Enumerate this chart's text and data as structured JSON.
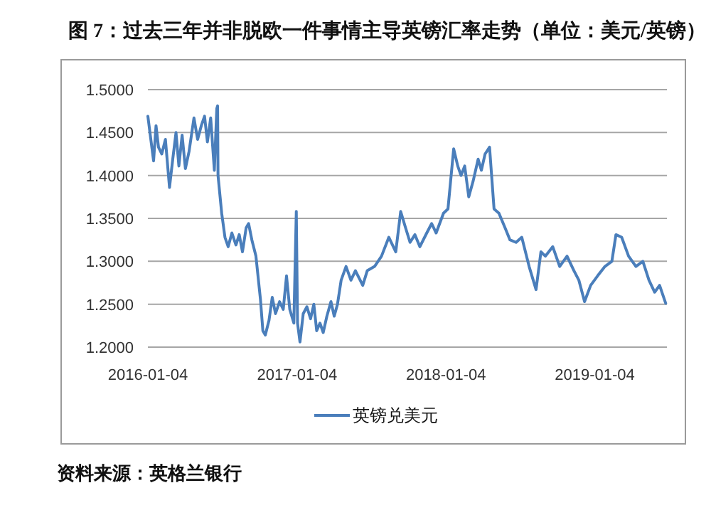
{
  "chart_data": {
    "type": "line",
    "title": "图 7：过去三年并非脱欧一件事情主导英镑汇率走势（单位：美元/英镑）",
    "annotations": [
      "资料来源：英格兰银行"
    ],
    "x": [
      "2016-01-04",
      "2016-01-12",
      "2016-01-18",
      "2016-01-24",
      "2016-01-30",
      "2016-02-07",
      "2016-02-16",
      "2016-02-26",
      "2016-03-05",
      "2016-03-13",
      "2016-03-20",
      "2016-03-28",
      "2016-04-05",
      "2016-04-14",
      "2016-04-26",
      "2016-05-05",
      "2016-05-14",
      "2016-05-22",
      "2016-05-29",
      "2016-06-06",
      "2016-06-15",
      "2016-06-21",
      "2016-06-23",
      "2016-06-24",
      "2016-07-03",
      "2016-07-11",
      "2016-07-19",
      "2016-07-28",
      "2016-08-07",
      "2016-08-15",
      "2016-08-23",
      "2016-09-01",
      "2016-09-07",
      "2016-09-15",
      "2016-09-25",
      "2016-10-06",
      "2016-10-12",
      "2016-10-18",
      "2016-10-27",
      "2016-11-04",
      "2016-11-12",
      "2016-11-22",
      "2016-12-01",
      "2016-12-09",
      "2016-12-17",
      "2016-12-27",
      "2017-01-02",
      "2017-01-05",
      "2017-01-11",
      "2017-01-19",
      "2017-01-28",
      "2017-02-06",
      "2017-02-14",
      "2017-02-21",
      "2017-03-01",
      "2017-03-09",
      "2017-03-18",
      "2017-03-28",
      "2017-04-05",
      "2017-04-13",
      "2017-04-22",
      "2017-05-04",
      "2017-05-16",
      "2017-05-27",
      "2017-06-14",
      "2017-06-25",
      "2017-07-13",
      "2017-07-30",
      "2017-08-17",
      "2017-09-03",
      "2017-09-15",
      "2017-09-27",
      "2017-10-08",
      "2017-10-20",
      "2017-11-01",
      "2017-11-18",
      "2017-11-30",
      "2017-12-11",
      "2017-12-29",
      "2018-01-09",
      "2018-01-23",
      "2018-02-02",
      "2018-02-10",
      "2018-02-19",
      "2018-03-01",
      "2018-03-12",
      "2018-03-24",
      "2018-04-01",
      "2018-04-10",
      "2018-04-21",
      "2018-05-02",
      "2018-05-14",
      "2018-05-29",
      "2018-06-10",
      "2018-06-25",
      "2018-07-09",
      "2018-07-27",
      "2018-08-13",
      "2018-08-25",
      "2018-09-05",
      "2018-09-23",
      "2018-10-10",
      "2018-10-28",
      "2018-11-14",
      "2018-11-26",
      "2018-12-10",
      "2018-12-25",
      "2019-01-11",
      "2019-01-29",
      "2019-02-15",
      "2019-02-25",
      "2019-03-11",
      "2019-03-28",
      "2019-04-15",
      "2019-05-02",
      "2019-05-17",
      "2019-05-31",
      "2019-06-12",
      "2019-06-27"
    ],
    "series": [
      {
        "name": "英镑兑美元",
        "color": "#4a7ebb",
        "values": [
          1.469,
          1.439,
          1.417,
          1.458,
          1.433,
          1.425,
          1.442,
          1.386,
          1.419,
          1.45,
          1.411,
          1.447,
          1.408,
          1.428,
          1.467,
          1.442,
          1.458,
          1.469,
          1.439,
          1.467,
          1.406,
          1.478,
          1.481,
          1.4,
          1.356,
          1.328,
          1.317,
          1.333,
          1.319,
          1.331,
          1.311,
          1.339,
          1.344,
          1.325,
          1.306,
          1.256,
          1.219,
          1.214,
          1.231,
          1.258,
          1.239,
          1.253,
          1.244,
          1.283,
          1.244,
          1.228,
          1.358,
          1.228,
          1.206,
          1.239,
          1.247,
          1.233,
          1.25,
          1.219,
          1.228,
          1.217,
          1.236,
          1.253,
          1.236,
          1.25,
          1.278,
          1.294,
          1.278,
          1.289,
          1.272,
          1.289,
          1.294,
          1.306,
          1.328,
          1.311,
          1.358,
          1.339,
          1.322,
          1.331,
          1.317,
          1.333,
          1.344,
          1.333,
          1.356,
          1.361,
          1.431,
          1.411,
          1.4,
          1.411,
          1.375,
          1.394,
          1.419,
          1.406,
          1.425,
          1.433,
          1.361,
          1.356,
          1.339,
          1.325,
          1.322,
          1.328,
          1.294,
          1.267,
          1.311,
          1.306,
          1.317,
          1.294,
          1.306,
          1.289,
          1.278,
          1.253,
          1.272,
          1.283,
          1.294,
          1.3,
          1.331,
          1.328,
          1.306,
          1.294,
          1.3,
          1.278,
          1.264,
          1.272,
          1.251
        ]
      }
    ],
    "xlim": [
      "2016-01-04",
      "2019-06-30"
    ],
    "xticks": [
      "2016-01-04",
      "2017-01-04",
      "2018-01-04",
      "2019-01-04"
    ],
    "ylim": [
      1.2,
      1.5
    ],
    "yticks": [
      {
        "value": 1.2,
        "label": "1.2000"
      },
      {
        "value": 1.25,
        "label": "1.2500"
      },
      {
        "value": 1.3,
        "label": "1.3000"
      },
      {
        "value": 1.35,
        "label": "1.3500"
      },
      {
        "value": 1.4,
        "label": "1.4000"
      },
      {
        "value": 1.45,
        "label": "1.4500"
      },
      {
        "value": 1.5,
        "label": "1.5000"
      }
    ],
    "grid": "y",
    "legend": "bottom",
    "marker": "none",
    "line_style": "solid"
  }
}
